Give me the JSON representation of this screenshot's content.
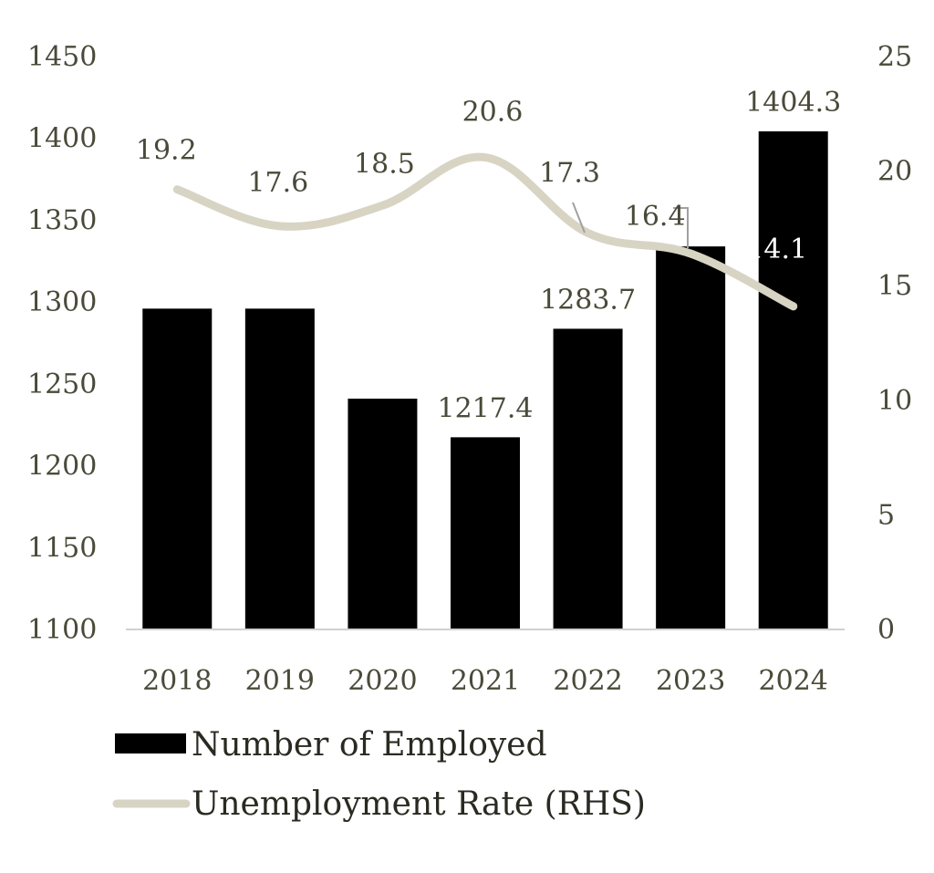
{
  "chart_data": {
    "type": "bar",
    "categories": [
      "2018",
      "2019",
      "2020",
      "2021",
      "2022",
      "2023",
      "2024"
    ],
    "series": [
      {
        "name": "Number of Employed",
        "kind": "bar",
        "axis": "left",
        "color": "#000000",
        "values": [
          1296,
          1296,
          1241,
          1217.4,
          1283.7,
          1334,
          1404.3
        ],
        "labels": [
          "",
          "",
          "",
          "1217.4",
          "1283.7",
          "",
          "1404.3"
        ]
      },
      {
        "name": "Unemployment Rate (RHS)",
        "kind": "line",
        "axis": "right",
        "color": "#d8d4c4",
        "values": [
          19.2,
          17.6,
          18.5,
          20.6,
          17.3,
          16.4,
          14.1
        ],
        "labels": [
          "19.2",
          "17.6",
          "18.5",
          "20.6",
          "17.3",
          "16.4",
          "14.1"
        ]
      }
    ],
    "y_left": {
      "min": 1100,
      "max": 1450,
      "ticks": [
        "1450",
        "1400",
        "1350",
        "1300",
        "1250",
        "1200",
        "1150",
        "1100"
      ]
    },
    "y_right": {
      "min": 0,
      "max": 25,
      "ticks": [
        "25",
        "20",
        "15",
        "10",
        "5",
        "0"
      ]
    },
    "legend": {
      "position": "bottom-left",
      "entries": [
        "Number of Employed",
        "Unemployment Rate (RHS)"
      ]
    },
    "grid": false,
    "title": "",
    "xlabel": "",
    "ylabel": ""
  }
}
